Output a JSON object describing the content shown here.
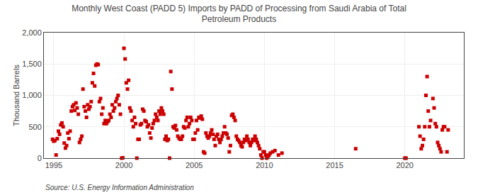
{
  "chart_data": {
    "type": "scatter",
    "title": "Monthly West Coast (PADD 5) Imports by PADD of Processing from Saudi Arabia of Total\nPetroleum Products",
    "ylabel": "Thousand Barrels",
    "source": "Source: U.S. Energy Information Administration",
    "color": "#cc0000",
    "marker": "square",
    "grid": true,
    "xlim": [
      1994.3,
      2024.2
    ],
    "ylim": [
      0,
      2000
    ],
    "xticks": [
      1995,
      2000,
      2005,
      2010,
      2015,
      2020
    ],
    "yticks": [
      0,
      500,
      {
        "value": 1000,
        "label": "1,000"
      },
      {
        "value": 1500,
        "label": "1,500"
      },
      {
        "value": 2000,
        "label": "2,000"
      }
    ],
    "x": [
      1994.917,
      1995.0,
      1995.083,
      1995.167,
      1995.25,
      1995.333,
      1995.417,
      1995.5,
      1995.583,
      1995.667,
      1995.75,
      1995.833,
      1995.917,
      1996.0,
      1996.083,
      1996.167,
      1996.25,
      1996.333,
      1996.417,
      1996.5,
      1996.583,
      1996.667,
      1996.75,
      1996.833,
      1996.917,
      1997.0,
      1997.083,
      1997.167,
      1997.25,
      1997.333,
      1997.417,
      1997.5,
      1997.583,
      1997.667,
      1997.75,
      1997.833,
      1997.917,
      1998.0,
      1998.083,
      1998.167,
      1998.25,
      1998.333,
      1998.417,
      1998.5,
      1998.583,
      1998.667,
      1998.75,
      1998.833,
      1998.917,
      1999.0,
      1999.083,
      1999.167,
      1999.25,
      1999.333,
      1999.417,
      1999.5,
      1999.583,
      1999.667,
      1999.75,
      1999.833,
      1999.917,
      2000.0,
      2000.083,
      2000.167,
      2000.25,
      2000.333,
      2000.417,
      2000.5,
      2000.583,
      2000.667,
      2000.75,
      2000.833,
      2000.917,
      2001.0,
      2001.083,
      2001.167,
      2001.25,
      2001.333,
      2001.417,
      2001.5,
      2001.583,
      2001.667,
      2001.75,
      2001.833,
      2001.917,
      2002.0,
      2002.083,
      2002.167,
      2002.25,
      2002.333,
      2002.417,
      2002.5,
      2002.583,
      2002.667,
      2002.75,
      2002.833,
      2002.917,
      2003.0,
      2003.083,
      2003.167,
      2003.25,
      2003.333,
      2003.417,
      2003.5,
      2003.583,
      2003.667,
      2003.75,
      2003.833,
      2003.917,
      2004.0,
      2004.083,
      2004.167,
      2004.25,
      2004.333,
      2004.417,
      2004.5,
      2004.583,
      2004.667,
      2004.75,
      2004.833,
      2004.917,
      2005.0,
      2005.083,
      2005.167,
      2005.25,
      2005.333,
      2005.417,
      2005.5,
      2005.583,
      2005.667,
      2005.75,
      2005.833,
      2005.917,
      2006.0,
      2006.083,
      2006.167,
      2006.25,
      2006.333,
      2006.417,
      2006.5,
      2006.583,
      2006.667,
      2006.75,
      2006.833,
      2006.917,
      2007.0,
      2007.083,
      2007.167,
      2007.25,
      2007.333,
      2007.417,
      2007.5,
      2007.583,
      2007.667,
      2007.75,
      2007.833,
      2007.917,
      2008.0,
      2008.083,
      2008.167,
      2008.25,
      2008.333,
      2008.417,
      2008.5,
      2008.583,
      2008.667,
      2008.75,
      2008.833,
      2008.917,
      2009.0,
      2009.083,
      2009.167,
      2009.25,
      2009.333,
      2009.417,
      2009.5,
      2009.583,
      2009.667,
      2009.75,
      2009.833,
      2009.917,
      2010.0,
      2010.083,
      2010.167,
      2010.25,
      2010.333,
      2010.417,
      2010.583,
      2010.75,
      2011.0,
      2011.25,
      2016.5,
      2020.0,
      2020.083,
      2021.0,
      2021.083,
      2021.167,
      2021.25,
      2021.333,
      2021.417,
      2021.5,
      2021.583,
      2021.667,
      2021.75,
      2021.833,
      2022.0,
      2022.083,
      2022.167,
      2022.25,
      2022.333,
      2022.417,
      2022.5,
      2022.583,
      2022.667,
      2022.75,
      2022.833,
      2023.0,
      2023.083
    ],
    "values": [
      300,
      270,
      280,
      50,
      310,
      430,
      380,
      530,
      560,
      500,
      240,
      160,
      200,
      400,
      310,
      430,
      750,
      820,
      850,
      760,
      880,
      800,
      700,
      250,
      300,
      350,
      1100,
      820,
      750,
      650,
      850,
      780,
      820,
      900,
      1200,
      1350,
      1150,
      1480,
      1500,
      1490,
      900,
      950,
      700,
      800,
      550,
      600,
      550,
      580,
      600,
      700,
      650,
      850,
      750,
      800,
      900,
      950,
      1000,
      850,
      700,
      0,
      5,
      1750,
      1580,
      1200,
      1100,
      1240,
      800,
      750,
      600,
      500,
      650,
      550,
      0,
      300,
      300,
      530,
      550,
      780,
      750,
      600,
      580,
      500,
      530,
      400,
      320,
      480,
      550,
      600,
      700,
      650,
      600,
      750,
      700,
      800,
      750,
      700,
      300,
      350,
      280,
      300,
      0,
      1380,
      1100,
      500,
      480,
      520,
      450,
      350,
      320,
      300,
      300,
      350,
      500,
      480,
      600,
      650,
      500,
      550,
      650,
      600,
      300,
      300,
      400,
      600,
      450,
      650,
      640,
      670,
      620,
      100,
      80,
      400,
      350,
      320,
      350,
      400,
      450,
      380,
      300,
      200,
      350,
      380,
      300,
      250,
      300,
      350,
      400,
      500,
      400,
      380,
      320,
      100,
      200,
      680,
      700,
      650,
      600,
      350,
      300,
      280,
      250,
      200,
      180,
      250,
      300,
      280,
      350,
      300,
      250,
      200,
      250,
      300,
      280,
      350,
      300,
      250,
      200,
      150,
      50,
      0,
      100,
      100,
      50,
      0,
      30,
      50,
      80,
      100,
      120,
      50,
      80,
      150,
      0,
      0,
      500,
      350,
      150,
      200,
      300,
      500,
      1000,
      1300,
      750,
      500,
      600,
      950,
      800,
      550,
      500,
      250,
      200,
      150,
      100,
      450,
      500,
      500,
      100,
      450
    ]
  }
}
